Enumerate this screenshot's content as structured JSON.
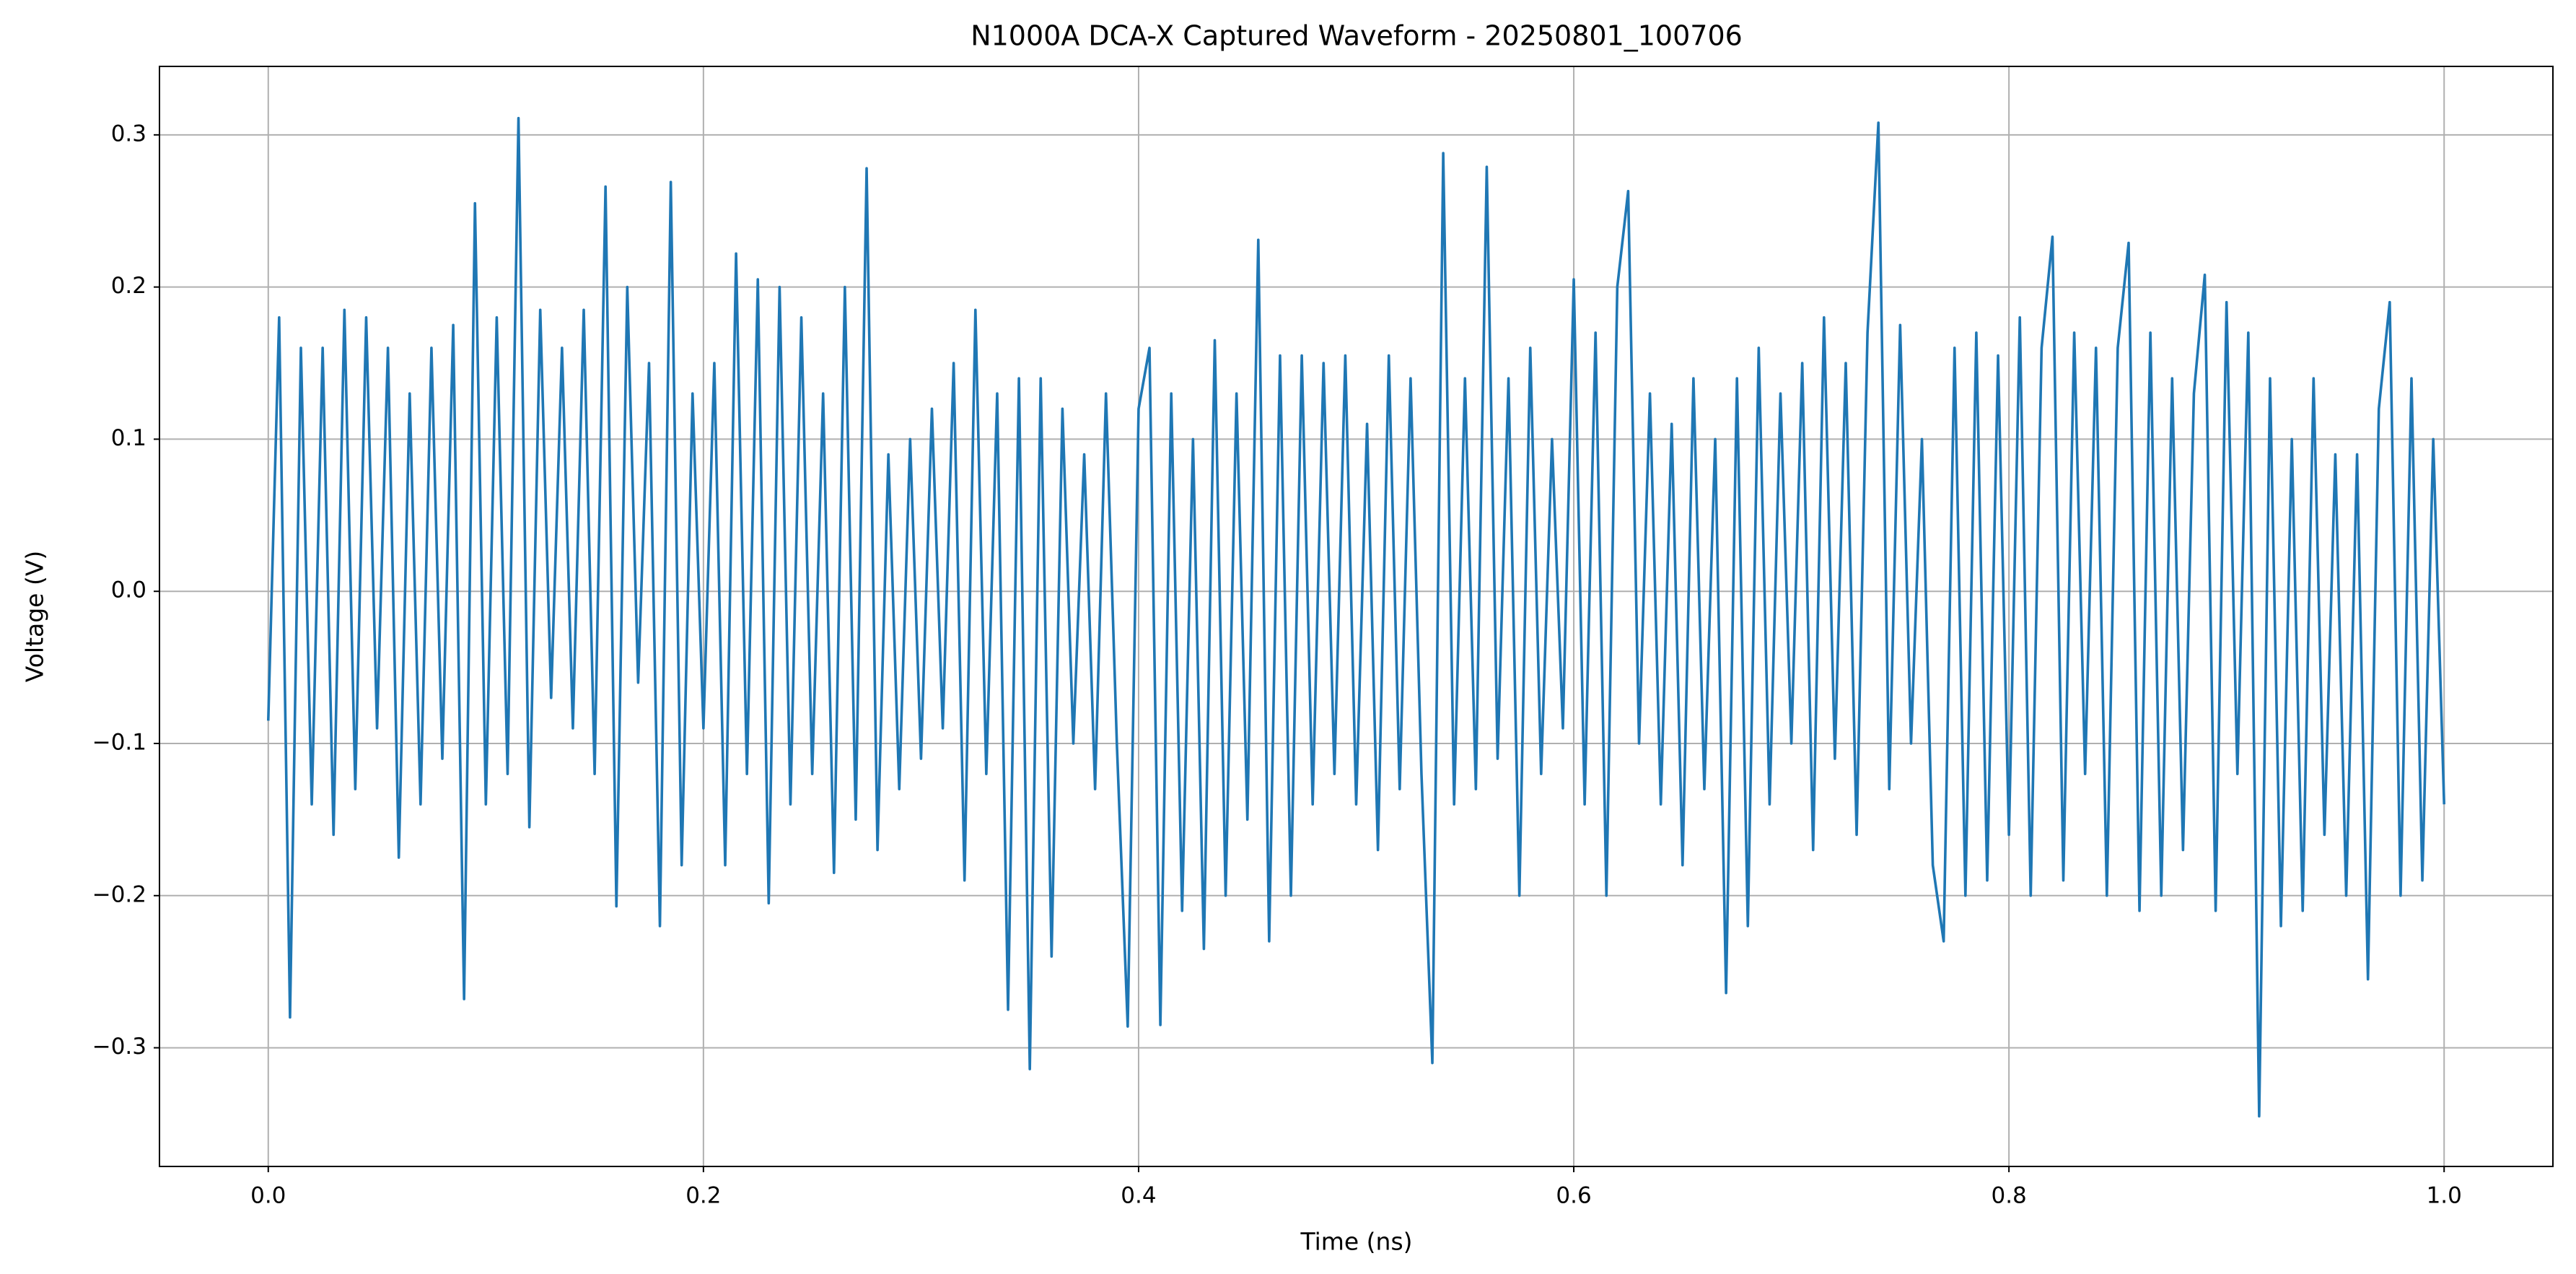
{
  "chart_data": {
    "type": "line",
    "title": "N1000A DCA-X Captured Waveform - 20250801_100706",
    "x_label": "Time (ns)",
    "y_label": "Voltage (V)",
    "color": "#1f77b4",
    "grid": true,
    "xlim": [
      -0.05,
      1.05
    ],
    "ylim": [
      -0.378,
      0.345
    ],
    "xticks": [
      {
        "value": 0,
        "label": "0.0"
      },
      0.2,
      0.4,
      0.6,
      0.8,
      {
        "value": 1,
        "label": "1.0"
      }
    ],
    "yticks": [
      {
        "value": -0.3,
        "label": "−0.3"
      },
      {
        "value": -0.2,
        "label": "−0.2"
      },
      {
        "value": -0.1,
        "label": "−0.1"
      },
      {
        "value": 0,
        "label": "0.0"
      },
      0.1,
      0.2,
      0.3
    ],
    "x": [
      0,
      0.005,
      0.01,
      0.015,
      0.02,
      0.025,
      0.03,
      0.035,
      0.04,
      0.045,
      0.05,
      0.055,
      0.06,
      0.065,
      0.07,
      0.075,
      0.08,
      0.085,
      0.09,
      0.095,
      0.1,
      0.105,
      0.11,
      0.115,
      0.12,
      0.125,
      0.13,
      0.135,
      0.14,
      0.145,
      0.15,
      0.155,
      0.16,
      0.165,
      0.17,
      0.175,
      0.18,
      0.185,
      0.19,
      0.195,
      0.2,
      0.205,
      0.21,
      0.215,
      0.22,
      0.225,
      0.23,
      0.235,
      0.24,
      0.245,
      0.25,
      0.255,
      0.26,
      0.265,
      0.27,
      0.275,
      0.28,
      0.285,
      0.29,
      0.295,
      0.3,
      0.305,
      0.31,
      0.315,
      0.32,
      0.325,
      0.33,
      0.335,
      0.34,
      0.345,
      0.35,
      0.355,
      0.36,
      0.365,
      0.37,
      0.375,
      0.38,
      0.385,
      0.39,
      0.395,
      0.4,
      0.405,
      0.41,
      0.415,
      0.42,
      0.425,
      0.43,
      0.435,
      0.44,
      0.445,
      0.45,
      0.455,
      0.46,
      0.465,
      0.47,
      0.475,
      0.48,
      0.485,
      0.49,
      0.495,
      0.5,
      0.505,
      0.51,
      0.515,
      0.52,
      0.525,
      0.53,
      0.535,
      0.54,
      0.545,
      0.55,
      0.555,
      0.56,
      0.565,
      0.57,
      0.575,
      0.58,
      0.585,
      0.59,
      0.595,
      0.6,
      0.605,
      0.61,
      0.615,
      0.62,
      0.625,
      0.63,
      0.635,
      0.64,
      0.645,
      0.65,
      0.655,
      0.66,
      0.665,
      0.67,
      0.675,
      0.68,
      0.685,
      0.69,
      0.695,
      0.7,
      0.705,
      0.71,
      0.715,
      0.72,
      0.725,
      0.73,
      0.735,
      0.74,
      0.745,
      0.75,
      0.755,
      0.76,
      0.765,
      0.77,
      0.775,
      0.78,
      0.785,
      0.79,
      0.795,
      0.8,
      0.805,
      0.81,
      0.815,
      0.82,
      0.825,
      0.83,
      0.835,
      0.84,
      0.845,
      0.85,
      0.855,
      0.86,
      0.865,
      0.87,
      0.875,
      0.88,
      0.885,
      0.89,
      0.895,
      0.9,
      0.905,
      0.91,
      0.915,
      0.92,
      0.925,
      0.93,
      0.935,
      0.94,
      0.945,
      0.95,
      0.955,
      0.96,
      0.965,
      0.97,
      0.975,
      0.98,
      0.985,
      0.99,
      0.995,
      1
    ],
    "values": [
      -0.085,
      0.18,
      -0.28,
      0.16,
      -0.14,
      0.16,
      -0.16,
      0.185,
      -0.13,
      0.18,
      -0.09,
      0.16,
      -0.175,
      0.13,
      -0.14,
      0.16,
      -0.11,
      0.175,
      -0.268,
      0.255,
      -0.14,
      0.18,
      -0.12,
      0.311,
      -0.155,
      0.185,
      -0.07,
      0.16,
      -0.09,
      0.185,
      -0.12,
      0.266,
      -0.207,
      0.2,
      -0.06,
      0.15,
      -0.22,
      0.269,
      -0.18,
      0.13,
      -0.09,
      0.15,
      -0.18,
      0.222,
      -0.12,
      0.205,
      -0.205,
      0.2,
      -0.14,
      0.18,
      -0.12,
      0.13,
      -0.185,
      0.2,
      -0.15,
      0.278,
      -0.17,
      0.09,
      -0.13,
      0.1,
      -0.11,
      0.12,
      -0.09,
      0.15,
      -0.19,
      0.185,
      -0.12,
      0.13,
      -0.275,
      0.14,
      -0.314,
      0.14,
      -0.24,
      0.12,
      -0.1,
      0.09,
      -0.13,
      0.13,
      -0.1,
      -0.286,
      0.12,
      0.16,
      -0.285,
      0.13,
      -0.21,
      0.1,
      -0.235,
      0.165,
      -0.2,
      0.13,
      -0.15,
      0.231,
      -0.23,
      0.155,
      -0.2,
      0.155,
      -0.14,
      0.15,
      -0.12,
      0.155,
      -0.14,
      0.11,
      -0.17,
      0.155,
      -0.13,
      0.14,
      -0.12,
      -0.31,
      0.288,
      -0.14,
      0.14,
      -0.13,
      0.279,
      -0.11,
      0.14,
      -0.2,
      0.16,
      -0.12,
      0.1,
      -0.09,
      0.205,
      -0.14,
      0.17,
      -0.2,
      0.2,
      0.263,
      -0.1,
      0.13,
      -0.14,
      0.11,
      -0.18,
      0.14,
      -0.13,
      0.1,
      -0.264,
      0.14,
      -0.22,
      0.16,
      -0.14,
      0.13,
      -0.1,
      0.15,
      -0.17,
      0.18,
      -0.11,
      0.15,
      -0.16,
      0.17,
      0.308,
      -0.13,
      0.175,
      -0.1,
      0.1,
      -0.18,
      -0.23,
      0.16,
      -0.2,
      0.17,
      -0.19,
      0.155,
      -0.16,
      0.18,
      -0.2,
      0.16,
      0.233,
      -0.19,
      0.17,
      -0.12,
      0.16,
      -0.2,
      0.16,
      0.229,
      -0.21,
      0.17,
      -0.2,
      0.14,
      -0.17,
      0.13,
      0.208,
      -0.21,
      0.19,
      -0.12,
      0.17,
      -0.345,
      0.14,
      -0.22,
      0.1,
      -0.21,
      0.14,
      -0.16,
      0.09,
      -0.2,
      0.09,
      -0.255,
      0.12,
      0.19,
      -0.2,
      0.14,
      -0.19,
      0.1,
      -0.14
    ]
  }
}
